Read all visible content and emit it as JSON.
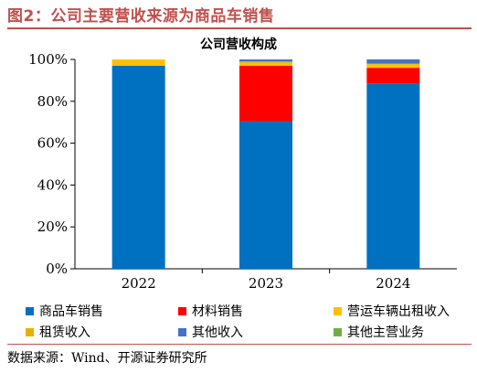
{
  "figure": {
    "title": "图2：公司主要营收来源为商品车销售",
    "source": "数据来源：Wind、开源证券研究所"
  },
  "chart_data": {
    "type": "bar",
    "stacked": true,
    "title": "公司营收构成",
    "categories": [
      "2022",
      "2023",
      "2024"
    ],
    "ylim": [
      0,
      100
    ],
    "yticks": [
      "0%",
      "20%",
      "40%",
      "60%",
      "80%",
      "100%"
    ],
    "ytick_values": [
      0,
      20,
      40,
      60,
      80,
      100
    ],
    "grid": false,
    "legend_position": "bottom",
    "series": [
      {
        "name": "商品车销售",
        "color": "#0070c0",
        "values": [
          97,
          70.5,
          88.5
        ]
      },
      {
        "name": "材料销售",
        "color": "#ff0000",
        "values": [
          0,
          26.5,
          7.5
        ]
      },
      {
        "name": "营运车辆出租收入",
        "color": "#ffc000",
        "values": [
          3,
          1.5,
          1.5
        ]
      },
      {
        "name": "租赁收入",
        "color": "#e6b000",
        "values": [
          0,
          0.5,
          0.5
        ]
      },
      {
        "name": "其他收入",
        "color": "#4472c4",
        "values": [
          0,
          1,
          2
        ]
      },
      {
        "name": "其他主营业务",
        "color": "#70ad47",
        "values": [
          0,
          0,
          0
        ]
      }
    ]
  }
}
